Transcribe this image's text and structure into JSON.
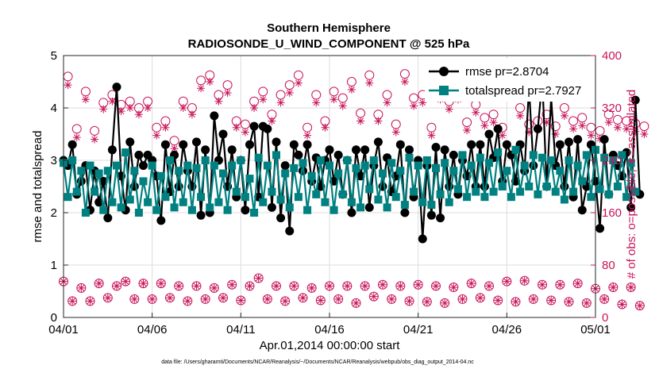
{
  "chart_data": {
    "type": "line",
    "title": "Southern Hemisphere",
    "subtitle": "RADIOSONDE_U_WIND_COMPONENT @ 525 hPa",
    "xlabel": "Apr.01,2014 00:00:00 start",
    "ylabel": "rmse and totalspread",
    "ylabel_right": "# of obs: o=possible; ∗=assimilated",
    "xlim": [
      0,
      30
    ],
    "ylim": [
      0,
      5
    ],
    "ylim_right": [
      0,
      400
    ],
    "x_ticks": [
      0,
      5,
      10,
      15,
      20,
      25,
      30
    ],
    "x_tick_labels": [
      "04/01",
      "04/06",
      "04/11",
      "04/16",
      "04/21",
      "04/26",
      "05/01"
    ],
    "y_ticks": [
      0,
      1,
      2,
      3,
      4,
      5
    ],
    "y_tick_labels": [
      "0",
      "1",
      "2",
      "3",
      "4",
      "5"
    ],
    "y_right_ticks": [
      0,
      80,
      160,
      240,
      320,
      400
    ],
    "y_right_tick_labels": [
      "0",
      "80",
      "160",
      "240",
      "320",
      "400"
    ],
    "x_step_days": 0.25,
    "series": [
      {
        "name": "rmse",
        "legend": "rmse pr=2.8704",
        "color": "#000000",
        "marker": "filled-circle",
        "values": [
          3.0,
          2.9,
          3.3,
          2.35,
          2.6,
          2.9,
          2.05,
          2.8,
          2.2,
          2.6,
          1.9,
          3.2,
          4.4,
          2.7,
          2.05,
          3.35,
          2.5,
          3.1,
          2.9,
          3.1,
          3.0,
          2.7,
          1.85,
          3.3,
          2.4,
          3.1,
          2.5,
          3.3,
          2.8,
          2.5,
          3.35,
          1.95,
          3.2,
          2.0,
          3.85,
          3.0,
          3.5,
          2.5,
          3.2,
          2.3,
          3.0,
          2.05,
          3.3,
          3.65,
          2.3,
          3.65,
          3.6,
          2.1,
          3.35,
          1.9,
          2.9,
          1.65,
          3.3,
          3.1,
          2.8,
          3.3,
          2.6,
          3.05,
          2.5,
          3.0,
          3.2,
          2.6,
          3.1,
          2.35,
          3.0,
          2.0,
          3.2,
          2.7,
          3.2,
          2.1,
          2.9,
          3.35,
          2.5,
          3.05,
          2.4,
          2.7,
          3.3,
          2.0,
          3.2,
          2.3,
          3.0,
          1.5,
          2.9,
          1.95,
          3.25,
          1.9,
          3.2,
          2.5,
          3.1,
          2.35,
          3.0,
          2.7,
          3.3,
          2.5,
          3.3,
          2.5,
          3.5,
          3.05,
          3.6,
          2.6,
          3.3,
          3.1,
          2.6,
          3.3,
          2.8,
          4.4,
          2.9,
          3.6,
          4.55,
          2.5,
          4.2,
          2.9,
          3.3,
          2.5,
          3.35,
          2.3,
          3.4,
          2.05,
          2.5,
          3.3,
          2.6,
          1.7,
          3.4,
          2.35,
          3.1,
          2.9,
          2.7,
          3.15,
          2.1,
          4.15,
          2.35
        ]
      },
      {
        "name": "totalspread",
        "legend": "totalspread pr=2.7927",
        "color": "#008080",
        "marker": "filled-square",
        "values": [
          2.95,
          2.3,
          3.0,
          2.4,
          2.8,
          2.0,
          2.9,
          2.4,
          2.75,
          2.05,
          2.8,
          2.2,
          2.9,
          2.1,
          3.15,
          2.25,
          2.8,
          2.0,
          2.6,
          2.2,
          2.9,
          2.05,
          2.7,
          2.3,
          3.0,
          2.1,
          2.8,
          2.2,
          2.9,
          2.05,
          2.85,
          2.3,
          3.0,
          2.1,
          2.9,
          2.2,
          2.75,
          2.05,
          2.9,
          2.4,
          3.0,
          2.3,
          2.65,
          2.0,
          3.05,
          2.2,
          2.9,
          2.4,
          3.1,
          2.25,
          2.75,
          2.1,
          2.85,
          2.3,
          2.95,
          2.05,
          2.7,
          2.35,
          3.0,
          2.2,
          2.9,
          2.05,
          2.75,
          2.35,
          3.0,
          2.2,
          2.85,
          2.1,
          2.9,
          2.45,
          3.0,
          2.25,
          2.75,
          2.1,
          2.95,
          2.3,
          2.8,
          2.15,
          3.05,
          2.4,
          2.9,
          2.2,
          3.0,
          2.15,
          2.85,
          2.35,
          2.95,
          2.2,
          2.8,
          2.45,
          3.1,
          2.3,
          2.9,
          2.4,
          3.05,
          2.3,
          2.95,
          2.4,
          3.15,
          2.5,
          2.8,
          2.3,
          3.2,
          2.4,
          2.9,
          2.5,
          3.1,
          2.35,
          3.05,
          2.5,
          3.0,
          2.4,
          2.8,
          2.25,
          3.0,
          2.4,
          2.9,
          2.6,
          3.1,
          2.3,
          3.2,
          2.45,
          3.05,
          2.35,
          3.0,
          2.5,
          3.1,
          2.3,
          2.95,
          2.4
        ]
      },
      {
        "name": "possible",
        "legend": "o=possible",
        "axis": "right",
        "color": "#c8145a",
        "marker": "open-circle",
        "values": [
          55,
          368,
          25,
          288,
          45,
          345,
          25,
          285,
          52,
          328,
          30,
          340,
          48,
          325,
          55,
          330,
          28,
          320,
          52,
          330,
          28,
          290,
          52,
          300,
          30,
          270,
          48,
          330,
          25,
          320,
          48,
          362,
          28,
          370,
          45,
          340,
          30,
          355,
          50,
          300,
          26,
          295,
          48,
          330,
          60,
          345,
          28,
          310,
          48,
          340,
          25,
          355,
          48,
          370,
          30,
          290,
          45,
          340,
          26,
          300,
          48,
          345,
          28,
          335,
          48,
          360,
          22,
          312,
          48,
          370,
          32,
          310,
          50,
          340,
          28,
          295,
          48,
          372,
          25,
          335,
          50,
          340,
          24,
          290,
          48,
          345,
          22,
          330,
          46,
          345,
          28,
          298,
          52,
          325,
          30,
          305,
          48,
          310,
          26,
          290,
          55,
          350,
          24,
          320,
          56,
          295,
          28,
          300,
          50,
          310,
          26,
          292,
          50,
          320,
          24,
          300,
          52,
          305,
          22,
          290,
          44,
          285,
          28,
          310,
          46,
          302,
          20,
          300,
          46,
          296,
          18,
          292
        ]
      },
      {
        "name": "assimilated",
        "legend": "∗=assimilated",
        "axis": "right",
        "color": "#c8145a",
        "marker": "asterisk",
        "values": [
          55,
          355,
          25,
          275,
          45,
          333,
          25,
          272,
          52,
          318,
          30,
          330,
          48,
          315,
          55,
          320,
          28,
          310,
          52,
          320,
          28,
          278,
          52,
          290,
          30,
          258,
          48,
          320,
          25,
          310,
          48,
          350,
          28,
          360,
          45,
          330,
          30,
          343,
          50,
          290,
          26,
          283,
          48,
          320,
          60,
          333,
          28,
          300,
          48,
          328,
          25,
          343,
          48,
          358,
          30,
          278,
          45,
          328,
          26,
          290,
          48,
          333,
          28,
          323,
          48,
          348,
          22,
          300,
          48,
          358,
          32,
          300,
          50,
          328,
          28,
          283,
          48,
          360,
          25,
          323,
          50,
          328,
          24,
          278,
          48,
          333,
          22,
          318,
          46,
          333,
          28,
          286,
          52,
          313,
          30,
          293,
          48,
          298,
          26,
          278,
          55,
          338,
          24,
          308,
          56,
          283,
          28,
          288,
          50,
          298,
          26,
          280,
          50,
          308,
          24,
          288,
          52,
          293,
          22,
          278,
          44,
          273,
          28,
          298,
          46,
          290,
          20,
          288,
          46,
          284,
          18,
          280
        ]
      }
    ],
    "legend_position": "top-right",
    "footer": "data file: /Users/gharamti/Documents/NCAR/Reanalysis/~/Documents/NCAR/Reanalysis/webpub/obs_diag_output_2014-04.nc"
  }
}
